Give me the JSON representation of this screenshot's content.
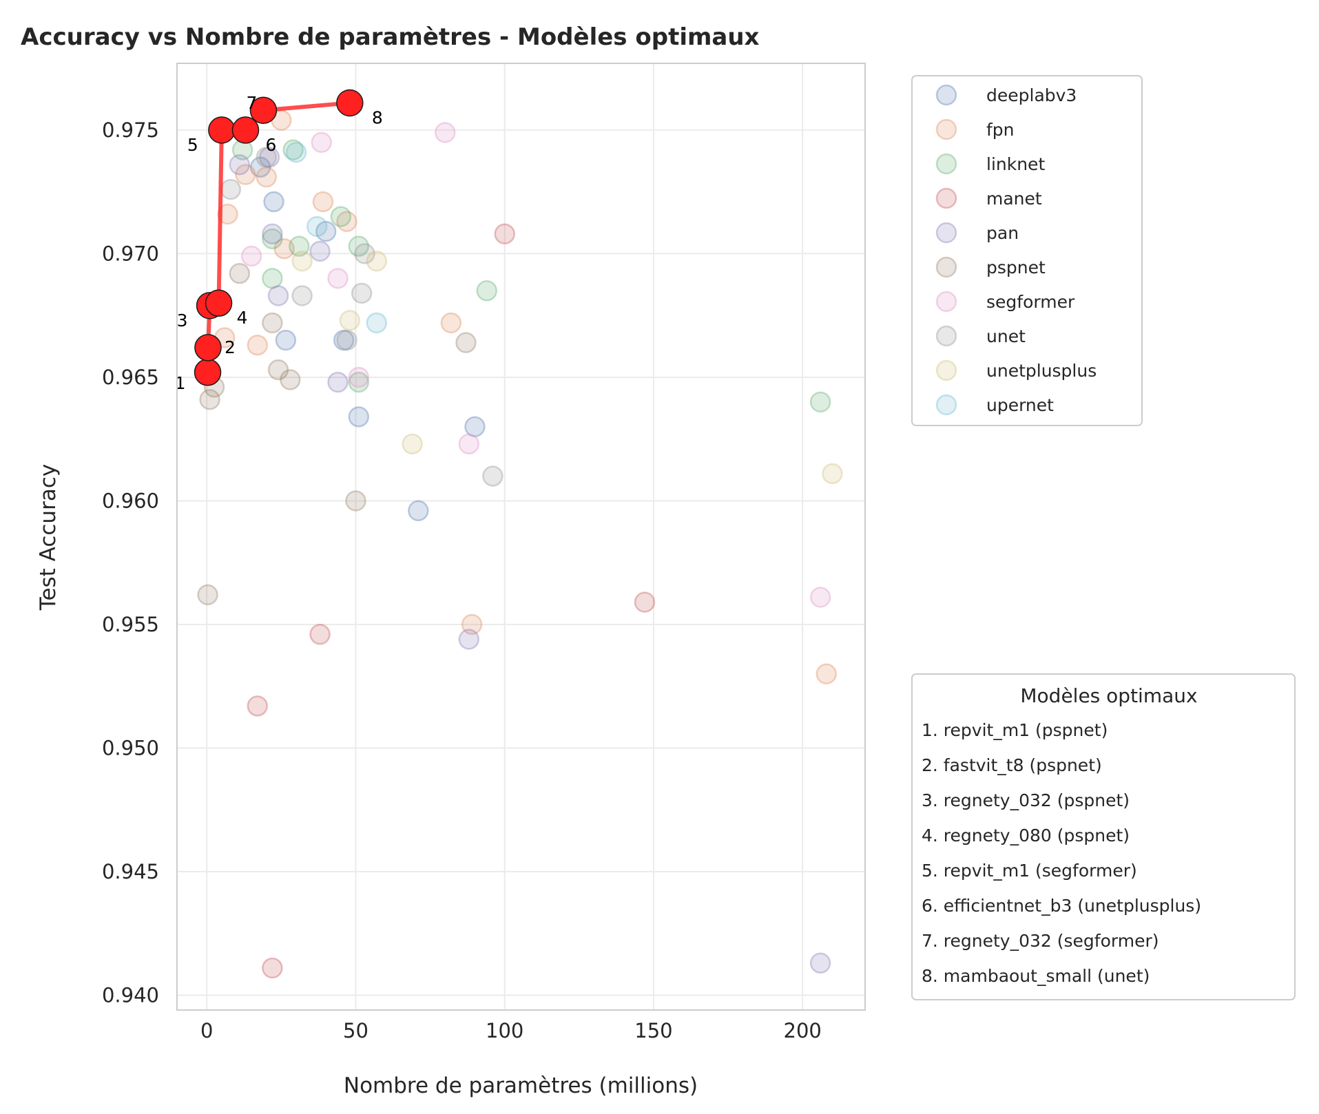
{
  "chart_data": {
    "type": "scatter",
    "title": "Accuracy vs Nombre de paramètres - Modèles optimaux",
    "xlabel": "Nombre de paramètres (millions)",
    "ylabel": "Test Accuracy",
    "xlim": [
      -10,
      221
    ],
    "ylim": [
      0.9394,
      0.9777
    ],
    "xticks": [
      0,
      50,
      100,
      150,
      200
    ],
    "xtick_labels": [
      "0",
      "50",
      "100",
      "150",
      "200"
    ],
    "yticks": [
      0.94,
      0.945,
      0.95,
      0.955,
      0.96,
      0.965,
      0.97,
      0.975
    ],
    "ytick_labels": [
      "0.940",
      "0.945",
      "0.950",
      "0.955",
      "0.960",
      "0.965",
      "0.970",
      "0.975"
    ],
    "grid": true,
    "legend_placement": "outside-top-right",
    "series": [
      {
        "name": "deeplabv3",
        "color": "#4c72b0",
        "points": [
          [
            22.5,
            0.9721
          ],
          [
            26.5,
            0.9665
          ],
          [
            40.0,
            0.9709
          ],
          [
            46.0,
            0.9665
          ],
          [
            51.0,
            0.9634
          ],
          [
            71.0,
            0.9596
          ],
          [
            90.0,
            0.963
          ],
          [
            18.0,
            0.9735
          ]
        ]
      },
      {
        "name": "fpn",
        "color": "#dd8452",
        "points": [
          [
            7.0,
            0.9716
          ],
          [
            13.0,
            0.9732
          ],
          [
            20.0,
            0.9731
          ],
          [
            26.0,
            0.9702
          ],
          [
            39.0,
            0.9721
          ],
          [
            47.0,
            0.9713
          ],
          [
            17.0,
            0.9663
          ],
          [
            6.0,
            0.9666
          ],
          [
            82.0,
            0.9672
          ],
          [
            89.0,
            0.955
          ],
          [
            208.0,
            0.953
          ],
          [
            25.0,
            0.9754
          ]
        ]
      },
      {
        "name": "linknet",
        "color": "#55a868",
        "points": [
          [
            12.0,
            0.9742
          ],
          [
            22.0,
            0.9706
          ],
          [
            22.0,
            0.969
          ],
          [
            31.0,
            0.9703
          ],
          [
            45.0,
            0.9715
          ],
          [
            51.0,
            0.9703
          ],
          [
            51.0,
            0.9648
          ],
          [
            94.0,
            0.9685
          ],
          [
            206.0,
            0.964
          ],
          [
            29.0,
            0.9742
          ]
        ]
      },
      {
        "name": "manet",
        "color": "#c44e52",
        "points": [
          [
            100.0,
            0.9708
          ],
          [
            147.0,
            0.9559
          ],
          [
            38.0,
            0.9546
          ],
          [
            17.0,
            0.9517
          ],
          [
            22.0,
            0.9411
          ]
        ]
      },
      {
        "name": "pan",
        "color": "#8172b3",
        "points": [
          [
            11.0,
            0.9736
          ],
          [
            21.0,
            0.9739
          ],
          [
            22.0,
            0.9708
          ],
          [
            24.0,
            0.9683
          ],
          [
            38.0,
            0.9701
          ],
          [
            44.0,
            0.9648
          ],
          [
            88.0,
            0.9544
          ],
          [
            206.0,
            0.9413
          ]
        ]
      },
      {
        "name": "pspnet",
        "color": "#937860",
        "points": [
          [
            0.3,
            0.9562
          ],
          [
            1.0,
            0.9641
          ],
          [
            2.5,
            0.9646
          ],
          [
            11.0,
            0.9692
          ],
          [
            22.0,
            0.9672
          ],
          [
            24.0,
            0.9653
          ],
          [
            28.0,
            0.9649
          ],
          [
            50.0,
            0.96
          ],
          [
            87.0,
            0.9664
          ]
        ]
      },
      {
        "name": "segformer",
        "color": "#da8bc3",
        "points": [
          [
            15.0,
            0.9699
          ],
          [
            38.5,
            0.9745
          ],
          [
            44.0,
            0.969
          ],
          [
            51.0,
            0.965
          ],
          [
            80.0,
            0.9749
          ],
          [
            88.0,
            0.9623
          ],
          [
            206.0,
            0.9561
          ]
        ]
      },
      {
        "name": "unet",
        "color": "#8c8c8c",
        "points": [
          [
            8.0,
            0.9726
          ],
          [
            20.0,
            0.9739
          ],
          [
            32.0,
            0.9683
          ],
          [
            47.0,
            0.9665
          ],
          [
            52.0,
            0.9684
          ],
          [
            96.0,
            0.961
          ],
          [
            53.0,
            0.97
          ]
        ]
      },
      {
        "name": "unetplusplus",
        "color": "#ccb974",
        "points": [
          [
            32.0,
            0.9697
          ],
          [
            48.0,
            0.9673
          ],
          [
            57.0,
            0.9697
          ],
          [
            69.0,
            0.9623
          ],
          [
            210.0,
            0.9611
          ]
        ]
      },
      {
        "name": "upernet",
        "color": "#64b5cd",
        "points": [
          [
            30.0,
            0.9741
          ],
          [
            37.0,
            0.9711
          ],
          [
            57.0,
            0.9672
          ]
        ]
      }
    ],
    "pareto_front": {
      "color": "#ff2020",
      "points": [
        {
          "label": "1",
          "x": 0.3,
          "y": 0.9652
        },
        {
          "label": "2",
          "x": 0.4,
          "y": 0.9662
        },
        {
          "label": "3",
          "x": 1.0,
          "y": 0.9679
        },
        {
          "label": "4",
          "x": 4.0,
          "y": 0.968
        },
        {
          "label": "5",
          "x": 5.0,
          "y": 0.975
        },
        {
          "label": "6",
          "x": 13.0,
          "y": 0.975
        },
        {
          "label": "7",
          "x": 19.0,
          "y": 0.9758
        },
        {
          "label": "8",
          "x": 48.0,
          "y": 0.9761
        }
      ]
    }
  },
  "optimal_box": {
    "title": "Modèles optimaux",
    "items": [
      "1. repvit_m1 (pspnet)",
      "2. fastvit_t8 (pspnet)",
      "3. regnety_032 (pspnet)",
      "4. regnety_080 (pspnet)",
      "5. repvit_m1 (segformer)",
      "6. efficientnet_b3 (unetplusplus)",
      "7. regnety_032 (segformer)",
      "8. mambaout_small (unet)"
    ]
  }
}
